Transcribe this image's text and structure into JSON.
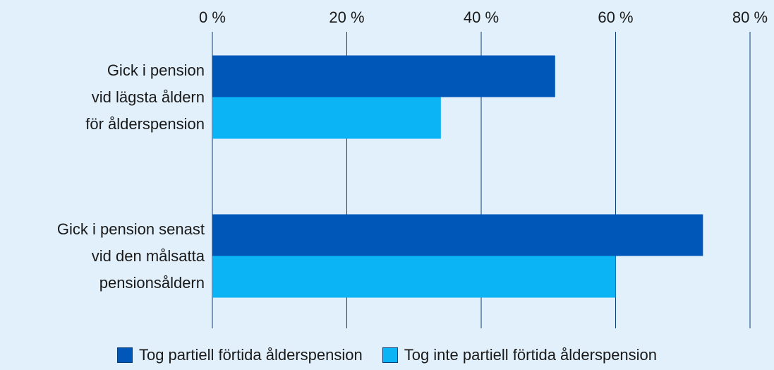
{
  "chart_data": {
    "type": "bar",
    "orientation": "horizontal",
    "categories": [
      "Gick i pension\nvid lägsta åldern\nför ålderspension",
      "Gick i pension senast\nvid den målsatta\npensionsåldern"
    ],
    "series": [
      {
        "name": "Tog partiell förtida ålderspension",
        "color": "#0057b8",
        "values": [
          51,
          73
        ]
      },
      {
        "name": "Tog inte partiell förtida ålderspension",
        "color": "#0bb4f4",
        "values": [
          34,
          60
        ]
      }
    ],
    "xlim": [
      0,
      80
    ],
    "xticks": [
      {
        "value": 0,
        "label": "0 %"
      },
      {
        "value": 20,
        "label": "20 %"
      },
      {
        "value": 40,
        "label": "40 %"
      },
      {
        "value": 60,
        "label": "60 %"
      },
      {
        "value": 80,
        "label": "80 %"
      }
    ],
    "grid": true,
    "legend": "bottom"
  }
}
